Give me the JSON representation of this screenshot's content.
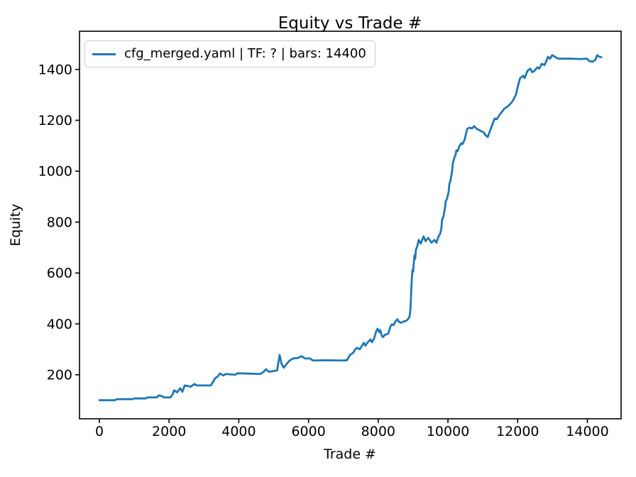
{
  "figure": {
    "title": "Equity vs Trade #"
  },
  "legend": {
    "position": "upper left",
    "entries": [
      {
        "label": "cfg_merged.yaml | TF: ? | bars: 14400",
        "color": "#1f77b4"
      }
    ]
  },
  "colors": {
    "line": "#1f77b4",
    "axis": "#000000",
    "tick_text": "#000000",
    "legend_border": "#cccccc",
    "background": "#ffffff"
  },
  "chart_data": {
    "type": "line",
    "title": "Equity vs Trade #",
    "xlabel": "Trade #",
    "ylabel": "Equity",
    "xlim": [
      -570,
      14967
    ],
    "ylim": [
      27,
      1550
    ],
    "xticks": [
      0,
      2000,
      4000,
      6000,
      8000,
      10000,
      12000,
      14000
    ],
    "yticks": [
      200,
      400,
      600,
      800,
      1000,
      1200,
      1400
    ],
    "grid": false,
    "legend_position": "upper left",
    "series": [
      {
        "name": "cfg_merged.yaml | TF: ? | bars: 14400",
        "color": "#1f77b4",
        "points": [
          [
            0,
            100
          ],
          [
            200,
            100
          ],
          [
            450,
            100
          ],
          [
            500,
            104
          ],
          [
            950,
            104
          ],
          [
            1000,
            107
          ],
          [
            1330,
            107
          ],
          [
            1380,
            111
          ],
          [
            1650,
            111
          ],
          [
            1700,
            119
          ],
          [
            1800,
            116
          ],
          [
            1850,
            111
          ],
          [
            2040,
            111
          ],
          [
            2110,
            125
          ],
          [
            2140,
            139
          ],
          [
            2230,
            131
          ],
          [
            2320,
            147
          ],
          [
            2380,
            133
          ],
          [
            2450,
            158
          ],
          [
            2620,
            153
          ],
          [
            2730,
            164
          ],
          [
            2790,
            158
          ],
          [
            3200,
            158
          ],
          [
            3320,
            186
          ],
          [
            3400,
            194
          ],
          [
            3460,
            205
          ],
          [
            3560,
            197
          ],
          [
            3620,
            203
          ],
          [
            3900,
            200
          ],
          [
            3960,
            206
          ],
          [
            4620,
            203
          ],
          [
            4730,
            214
          ],
          [
            4780,
            222
          ],
          [
            4840,
            214
          ],
          [
            4890,
            212
          ],
          [
            5100,
            217
          ],
          [
            5170,
            278
          ],
          [
            5230,
            242
          ],
          [
            5290,
            228
          ],
          [
            5400,
            247
          ],
          [
            5460,
            256
          ],
          [
            5560,
            264
          ],
          [
            5700,
            266
          ],
          [
            5800,
            273
          ],
          [
            5900,
            264
          ],
          [
            6050,
            264
          ],
          [
            6100,
            258
          ],
          [
            6150,
            256
          ],
          [
            6500,
            257
          ],
          [
            6990,
            256
          ],
          [
            7100,
            257
          ],
          [
            7190,
            278
          ],
          [
            7280,
            286
          ],
          [
            7330,
            298
          ],
          [
            7390,
            306
          ],
          [
            7470,
            300
          ],
          [
            7530,
            314
          ],
          [
            7590,
            326
          ],
          [
            7630,
            314
          ],
          [
            7700,
            328
          ],
          [
            7780,
            339
          ],
          [
            7820,
            328
          ],
          [
            7880,
            342
          ],
          [
            7940,
            370
          ],
          [
            7980,
            381
          ],
          [
            8030,
            367
          ],
          [
            8060,
            376
          ],
          [
            8100,
            353
          ],
          [
            8140,
            348
          ],
          [
            8180,
            356
          ],
          [
            8290,
            362
          ],
          [
            8350,
            390
          ],
          [
            8390,
            398
          ],
          [
            8440,
            395
          ],
          [
            8490,
            409
          ],
          [
            8550,
            418
          ],
          [
            8590,
            409
          ],
          [
            8650,
            404
          ],
          [
            8720,
            409
          ],
          [
            8800,
            412
          ],
          [
            8850,
            418
          ],
          [
            8890,
            426
          ],
          [
            8910,
            437
          ],
          [
            8925,
            460
          ],
          [
            8935,
            493
          ],
          [
            8950,
            538
          ],
          [
            8965,
            585
          ],
          [
            8985,
            613
          ],
          [
            9000,
            605
          ],
          [
            9020,
            641
          ],
          [
            9040,
            669
          ],
          [
            9060,
            655
          ],
          [
            9080,
            691
          ],
          [
            9120,
            705
          ],
          [
            9160,
            730
          ],
          [
            9220,
            716
          ],
          [
            9300,
            744
          ],
          [
            9360,
            725
          ],
          [
            9430,
            738
          ],
          [
            9530,
            719
          ],
          [
            9610,
            730
          ],
          [
            9670,
            719
          ],
          [
            9730,
            744
          ],
          [
            9770,
            752
          ],
          [
            9810,
            772
          ],
          [
            9830,
            808
          ],
          [
            9870,
            822
          ],
          [
            9915,
            856
          ],
          [
            9940,
            883
          ],
          [
            9975,
            892
          ],
          [
            10020,
            920
          ],
          [
            10040,
            948
          ],
          [
            10080,
            967
          ],
          [
            10120,
            1003
          ],
          [
            10140,
            1031
          ],
          [
            10180,
            1051
          ],
          [
            10220,
            1065
          ],
          [
            10240,
            1082
          ],
          [
            10280,
            1079
          ],
          [
            10320,
            1096
          ],
          [
            10380,
            1110
          ],
          [
            10420,
            1107
          ],
          [
            10480,
            1124
          ],
          [
            10550,
            1166
          ],
          [
            10610,
            1171
          ],
          [
            10690,
            1168
          ],
          [
            10750,
            1177
          ],
          [
            10830,
            1166
          ],
          [
            10890,
            1162
          ],
          [
            11030,
            1152
          ],
          [
            11080,
            1141
          ],
          [
            11140,
            1134
          ],
          [
            11240,
            1171
          ],
          [
            11300,
            1193
          ],
          [
            11340,
            1207
          ],
          [
            11400,
            1204
          ],
          [
            11480,
            1221
          ],
          [
            11540,
            1232
          ],
          [
            11620,
            1246
          ],
          [
            11710,
            1254
          ],
          [
            11780,
            1263
          ],
          [
            11850,
            1274
          ],
          [
            11950,
            1300
          ],
          [
            12000,
            1330
          ],
          [
            12070,
            1366
          ],
          [
            12160,
            1375
          ],
          [
            12200,
            1366
          ],
          [
            12280,
            1394
          ],
          [
            12360,
            1403
          ],
          [
            12420,
            1389
          ],
          [
            12480,
            1394
          ],
          [
            12560,
            1408
          ],
          [
            12620,
            1403
          ],
          [
            12690,
            1422
          ],
          [
            12770,
            1417
          ],
          [
            12830,
            1436
          ],
          [
            12870,
            1450
          ],
          [
            12930,
            1442
          ],
          [
            12990,
            1456
          ],
          [
            13070,
            1450
          ],
          [
            13130,
            1444
          ],
          [
            13200,
            1442
          ],
          [
            13500,
            1442
          ],
          [
            13800,
            1441
          ],
          [
            13990,
            1442
          ],
          [
            14050,
            1433
          ],
          [
            14150,
            1430
          ],
          [
            14230,
            1438
          ],
          [
            14280,
            1456
          ],
          [
            14340,
            1450
          ],
          [
            14400,
            1448
          ]
        ]
      }
    ]
  }
}
